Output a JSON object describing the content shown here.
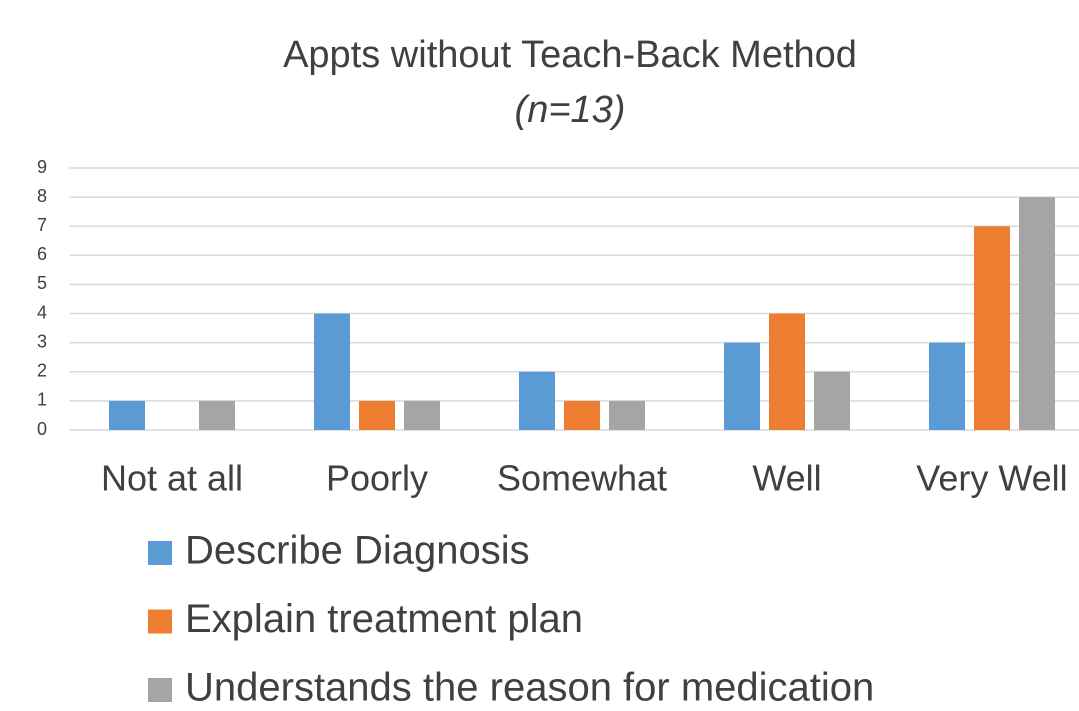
{
  "chart_data": {
    "type": "bar",
    "title": "Appts without Teach-Back Method",
    "subtitle": "(n=13)",
    "categories": [
      "Not at all",
      "Poorly",
      "Somewhat",
      "Well",
      "Very Well"
    ],
    "series": [
      {
        "name": "Describe Diagnosis",
        "color": "#5b9bd5",
        "values": [
          1,
          4,
          2,
          3,
          3
        ]
      },
      {
        "name": "Explain treatment plan",
        "color": "#ed7d31",
        "values": [
          0,
          1,
          1,
          4,
          7
        ]
      },
      {
        "name": "Understands the reason for medication",
        "color": "#a5a5a5",
        "values": [
          1,
          1,
          1,
          2,
          8
        ]
      }
    ],
    "ylim": [
      0,
      9
    ],
    "yticks": [
      0,
      1,
      2,
      3,
      4,
      5,
      6,
      7,
      8,
      9
    ],
    "grid": true,
    "legend": "bottom"
  }
}
